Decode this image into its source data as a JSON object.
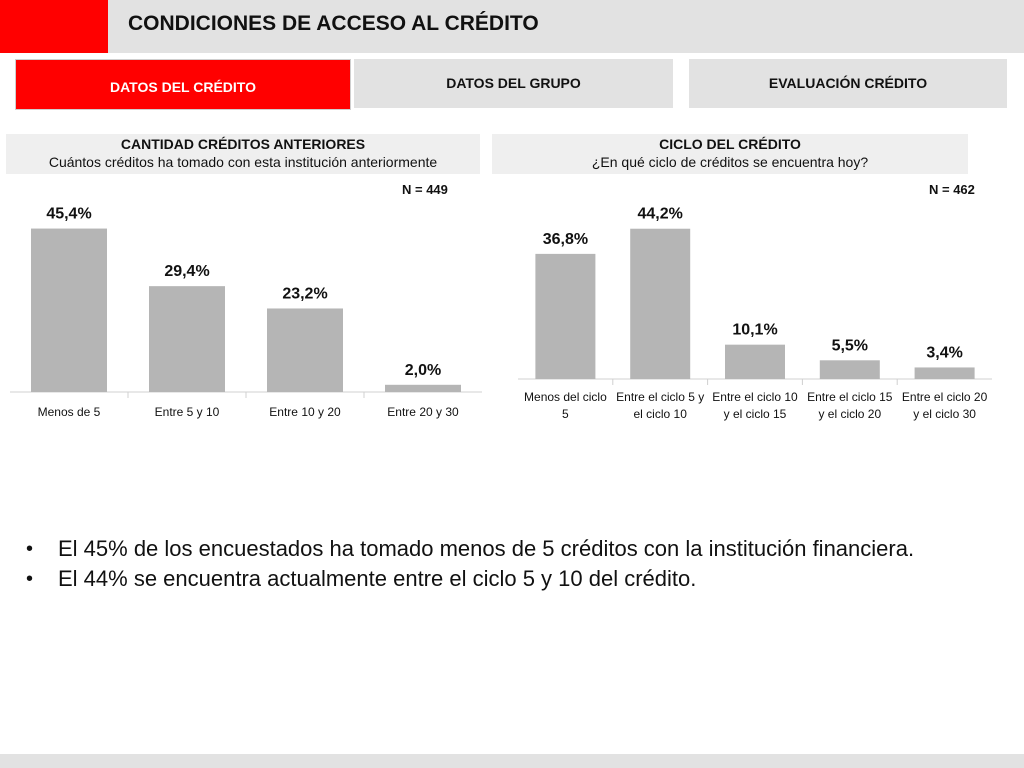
{
  "header": {
    "title": "CONDICIONES DE ACCESO AL CRÉDITO"
  },
  "tabs": [
    {
      "label": "DATOS DEL CRÉDITO",
      "active": true
    },
    {
      "label": "DATOS DEL GRUPO",
      "active": false
    },
    {
      "label": "EVALUACIÓN CRÉDITO",
      "active": false
    }
  ],
  "colors": {
    "accent": "#ff0000",
    "bar": "#b5b5b5",
    "panel": "#e2e2e2"
  },
  "chart_data": [
    {
      "type": "bar",
      "title": "CANTIDAD CRÉDITOS ANTERIORES",
      "subtitle": "Cuántos créditos ha tomado con esta institución anteriormente",
      "n_label": "N = 449",
      "categories": [
        "Menos de 5",
        "Entre 5 y 10",
        "Entre 10 y 20",
        "Entre 20 y 30"
      ],
      "values": [
        45.4,
        29.4,
        23.2,
        2.0
      ],
      "data_labels": [
        "45,4%",
        "29,4%",
        "23,2%",
        "2,0%"
      ],
      "ylim": [
        0,
        50
      ],
      "grid": false
    },
    {
      "type": "bar",
      "title": "CICLO DEL CRÉDITO",
      "subtitle": "¿En qué ciclo de créditos se encuentra hoy?",
      "n_label": "N = 462",
      "categories": [
        "Menos del ciclo 5",
        "Entre el ciclo 5 y el ciclo 10",
        "Entre el ciclo 10 y el ciclo 15",
        "Entre el ciclo 15 y el ciclo 20",
        "Entre el ciclo 20 y el ciclo 30"
      ],
      "category_lines": [
        [
          "Menos del ciclo",
          "5"
        ],
        [
          "Entre el ciclo 5 y",
          "el ciclo 10"
        ],
        [
          "Entre el ciclo 10",
          "y el ciclo 15"
        ],
        [
          "Entre el ciclo 15",
          "y el ciclo 20"
        ],
        [
          "Entre el ciclo 20",
          "y el ciclo 30"
        ]
      ],
      "values": [
        36.8,
        44.2,
        10.1,
        5.5,
        3.4
      ],
      "data_labels": [
        "36,8%",
        "44,2%",
        "10,1%",
        "5,5%",
        "3,4%"
      ],
      "ylim": [
        0,
        50
      ],
      "grid": false
    }
  ],
  "bullets": [
    "El 45% de los encuestados ha tomado menos de 5 créditos con la institución financiera.",
    "El 44% se encuentra actualmente entre el ciclo 5 y 10 del crédito."
  ]
}
